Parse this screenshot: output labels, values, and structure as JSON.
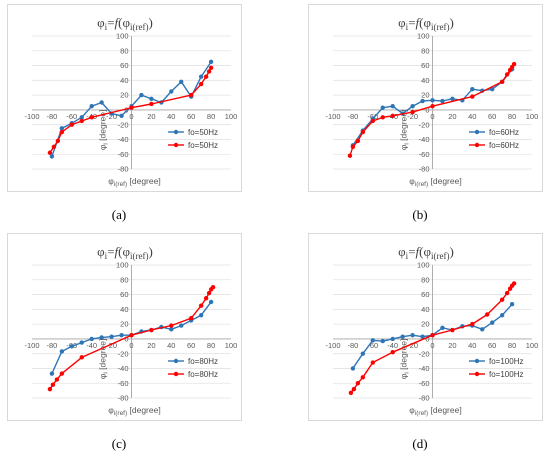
{
  "panels": [
    {
      "caption": "(a)",
      "title": {
        "base": "φ",
        "base_sub": "i",
        "eq": "=",
        "f": "f",
        "arg": "φ",
        "arg_sub": "i(ref)"
      },
      "chart_data": {
        "type": "line",
        "xlabel": {
          "base": "φ",
          "sub": "i(ref)",
          "rest": " [degree]"
        },
        "ylabel": {
          "base": "φ",
          "sub": "i",
          "rest": " [degree]"
        },
        "xlim": [
          -100,
          100
        ],
        "ylim": [
          -80,
          100
        ],
        "xticks": [
          -100,
          -80,
          -60,
          -40,
          -20,
          0,
          20,
          40,
          60,
          80,
          100
        ],
        "yticks": [
          -80,
          -60,
          -40,
          -20,
          0,
          20,
          40,
          60,
          80,
          100
        ],
        "grid": true,
        "legend_position": "bottom-right",
        "series": [
          {
            "name": "fo=50Hz",
            "color": "#2E75B6",
            "x": [
              -80,
              -70,
              -60,
              -50,
              -40,
              -30,
              -20,
              -10,
              0,
              10,
              20,
              30,
              40,
              50,
              60,
              70,
              80
            ],
            "y": [
              -63,
              -25,
              -18,
              -10,
              5,
              10,
              -5,
              -8,
              5,
              20,
              15,
              10,
              25,
              38,
              18,
              45,
              65
            ]
          },
          {
            "name": "fo=50Hz",
            "color": "#FF0000",
            "x": [
              -82,
              -78,
              -74,
              -70,
              -60,
              -50,
              -40,
              0,
              20,
              60,
              70,
              75,
              78,
              80
            ],
            "y": [
              -58,
              -50,
              -42,
              -30,
              -20,
              -15,
              -10,
              3,
              8,
              20,
              35,
              45,
              52,
              57
            ]
          }
        ]
      }
    },
    {
      "caption": "(b)",
      "title": {
        "base": "φ",
        "base_sub": "i",
        "eq": "=",
        "f": "f",
        "arg": "φ",
        "arg_sub": "i(ref)"
      },
      "chart_data": {
        "type": "line",
        "xlabel": {
          "base": "φ",
          "sub": "i(ref)",
          "rest": " [degree]"
        },
        "ylabel": {
          "base": "φ",
          "sub": "i",
          "rest": " [degree]"
        },
        "xlim": [
          -100,
          100
        ],
        "ylim": [
          -80,
          100
        ],
        "xticks": [
          -100,
          -80,
          -60,
          -40,
          -20,
          0,
          20,
          40,
          60,
          80,
          100
        ],
        "yticks": [
          -80,
          -60,
          -40,
          -20,
          0,
          20,
          40,
          60,
          80,
          100
        ],
        "grid": true,
        "legend_position": "bottom-right",
        "series": [
          {
            "name": "fo=60Hz",
            "color": "#2E75B6",
            "x": [
              -80,
              -70,
              -60,
              -50,
              -40,
              -30,
              -20,
              -10,
              0,
              10,
              20,
              30,
              40,
              50,
              60,
              70,
              80
            ],
            "y": [
              -48,
              -28,
              -12,
              3,
              5,
              -5,
              5,
              12,
              13,
              12,
              15,
              13,
              28,
              26,
              28,
              38,
              55
            ]
          },
          {
            "name": "fo=60Hz",
            "color": "#FF0000",
            "x": [
              -83,
              -80,
              -75,
              -70,
              -60,
              -50,
              -40,
              -20,
              0,
              40,
              70,
              75,
              78,
              80,
              82
            ],
            "y": [
              -62,
              -50,
              -42,
              -30,
              -15,
              -10,
              -8,
              -3,
              5,
              18,
              38,
              48,
              54,
              58,
              62
            ]
          }
        ]
      }
    },
    {
      "caption": "(c)",
      "title": {
        "base": "φ",
        "base_sub": "i",
        "eq": "=",
        "f": "f",
        "arg": "φ",
        "arg_sub": "i(ref)"
      },
      "chart_data": {
        "type": "line",
        "xlabel": {
          "base": "φ",
          "sub": "i(ref)",
          "rest": " [degree]"
        },
        "ylabel": {
          "base": "φ",
          "sub": "i",
          "rest": " [degree]"
        },
        "xlim": [
          -100,
          100
        ],
        "ylim": [
          -80,
          100
        ],
        "xticks": [
          -100,
          -80,
          -60,
          -40,
          -20,
          0,
          20,
          40,
          60,
          80,
          100
        ],
        "yticks": [
          -80,
          -60,
          -40,
          -20,
          0,
          20,
          40,
          60,
          80,
          100
        ],
        "grid": true,
        "legend_position": "bottom-right",
        "series": [
          {
            "name": "fo=80Hz",
            "color": "#2E75B6",
            "x": [
              -80,
              -70,
              -60,
              -50,
              -40,
              -30,
              -20,
              -10,
              0,
              10,
              20,
              30,
              40,
              50,
              60,
              70,
              80
            ],
            "y": [
              -47,
              -17,
              -10,
              -5,
              0,
              2,
              3,
              5,
              5,
              10,
              12,
              16,
              13,
              18,
              25,
              32,
              50
            ]
          },
          {
            "name": "fo=80Hz",
            "color": "#FF0000",
            "x": [
              -82,
              -79,
              -75,
              -70,
              -50,
              0,
              20,
              40,
              60,
              70,
              75,
              78,
              80,
              82
            ],
            "y": [
              -68,
              -62,
              -55,
              -47,
              -25,
              5,
              12,
              18,
              28,
              45,
              55,
              62,
              67,
              70
            ]
          }
        ]
      }
    },
    {
      "caption": "(d)",
      "title": {
        "base": "φ",
        "base_sub": "i",
        "eq": "=",
        "f": "f",
        "arg": "φ",
        "arg_sub": "i(ref)"
      },
      "chart_data": {
        "type": "line",
        "xlabel": {
          "base": "φ",
          "sub": "i(ref)",
          "rest": " [degree]"
        },
        "ylabel": {
          "base": "φ",
          "sub": "i",
          "rest": " [degree]"
        },
        "xlim": [
          -100,
          100
        ],
        "ylim": [
          -80,
          100
        ],
        "xticks": [
          -100,
          -80,
          -60,
          -40,
          -20,
          0,
          20,
          40,
          60,
          80,
          100
        ],
        "yticks": [
          -80,
          -60,
          -40,
          -20,
          0,
          20,
          40,
          60,
          80,
          100
        ],
        "grid": true,
        "legend_position": "bottom-right",
        "series": [
          {
            "name": "fo=100Hz",
            "color": "#2E75B6",
            "x": [
              -80,
              -70,
              -60,
              -50,
              -40,
              -30,
              -20,
              -10,
              0,
              10,
              20,
              30,
              40,
              50,
              60,
              70,
              80
            ],
            "y": [
              -40,
              -20,
              -2,
              -3,
              0,
              3,
              5,
              3,
              5,
              15,
              12,
              17,
              18,
              13,
              22,
              32,
              47
            ]
          },
          {
            "name": "fo=100Hz",
            "color": "#FF0000",
            "x": [
              -82,
              -79,
              -75,
              -70,
              -60,
              -40,
              0,
              20,
              40,
              55,
              70,
              75,
              78,
              80,
              82
            ],
            "y": [
              -73,
              -68,
              -60,
              -52,
              -32,
              -18,
              5,
              12,
              20,
              33,
              53,
              62,
              68,
              72,
              75
            ]
          }
        ]
      }
    }
  ]
}
